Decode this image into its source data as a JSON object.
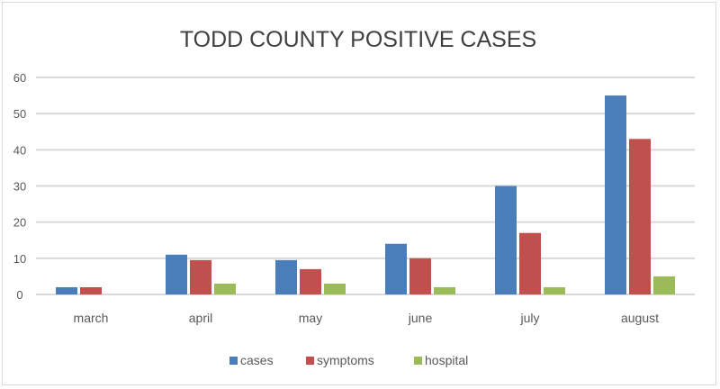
{
  "chart_data": {
    "type": "bar",
    "title": "TODD COUNTY POSITIVE CASES",
    "xlabel": "",
    "ylabel": "",
    "categories": [
      "march",
      "april",
      "may",
      "june",
      "july",
      "august"
    ],
    "ylim": [
      0,
      60
    ],
    "yticks": [
      0,
      10,
      20,
      30,
      40,
      50,
      60
    ],
    "grid": true,
    "legend_position": "bottom",
    "series": [
      {
        "name": "cases",
        "color": "#4a7ebb",
        "values": [
          2,
          11,
          9.5,
          14,
          30,
          55
        ]
      },
      {
        "name": "symptoms",
        "color": "#c0504d",
        "values": [
          2,
          9.5,
          7,
          10,
          17,
          43
        ]
      },
      {
        "name": "hospital",
        "color": "#9bbb59",
        "values": [
          0,
          3,
          3,
          2,
          2,
          5
        ]
      }
    ]
  }
}
